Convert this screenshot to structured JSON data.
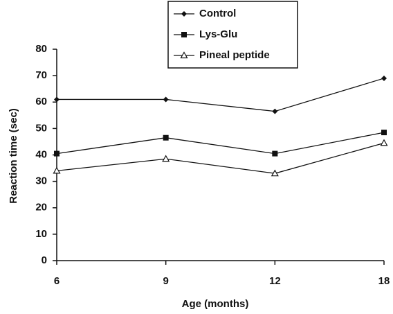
{
  "chart_data": {
    "type": "line",
    "x_label": "Age (months)",
    "y_label": "Reaction time (sec)",
    "categories": [
      "6",
      "9",
      "12",
      "18"
    ],
    "series": [
      {
        "name": "Control",
        "color": "#111111",
        "marker": "diamond",
        "values": [
          61,
          61,
          56.5,
          69
        ]
      },
      {
        "name": "Lys-Glu",
        "color": "#111111",
        "marker": "square",
        "values": [
          40.5,
          46.5,
          40.5,
          48.5
        ]
      },
      {
        "name": "Pineal peptide",
        "color": "#111111",
        "marker": "triangle",
        "values": [
          34,
          38.5,
          33,
          44.5
        ]
      }
    ],
    "ylim": [
      0,
      80
    ],
    "yticks": [
      0,
      10,
      20,
      30,
      40,
      50,
      60,
      70,
      80
    ],
    "grid": false,
    "legend": "top"
  }
}
